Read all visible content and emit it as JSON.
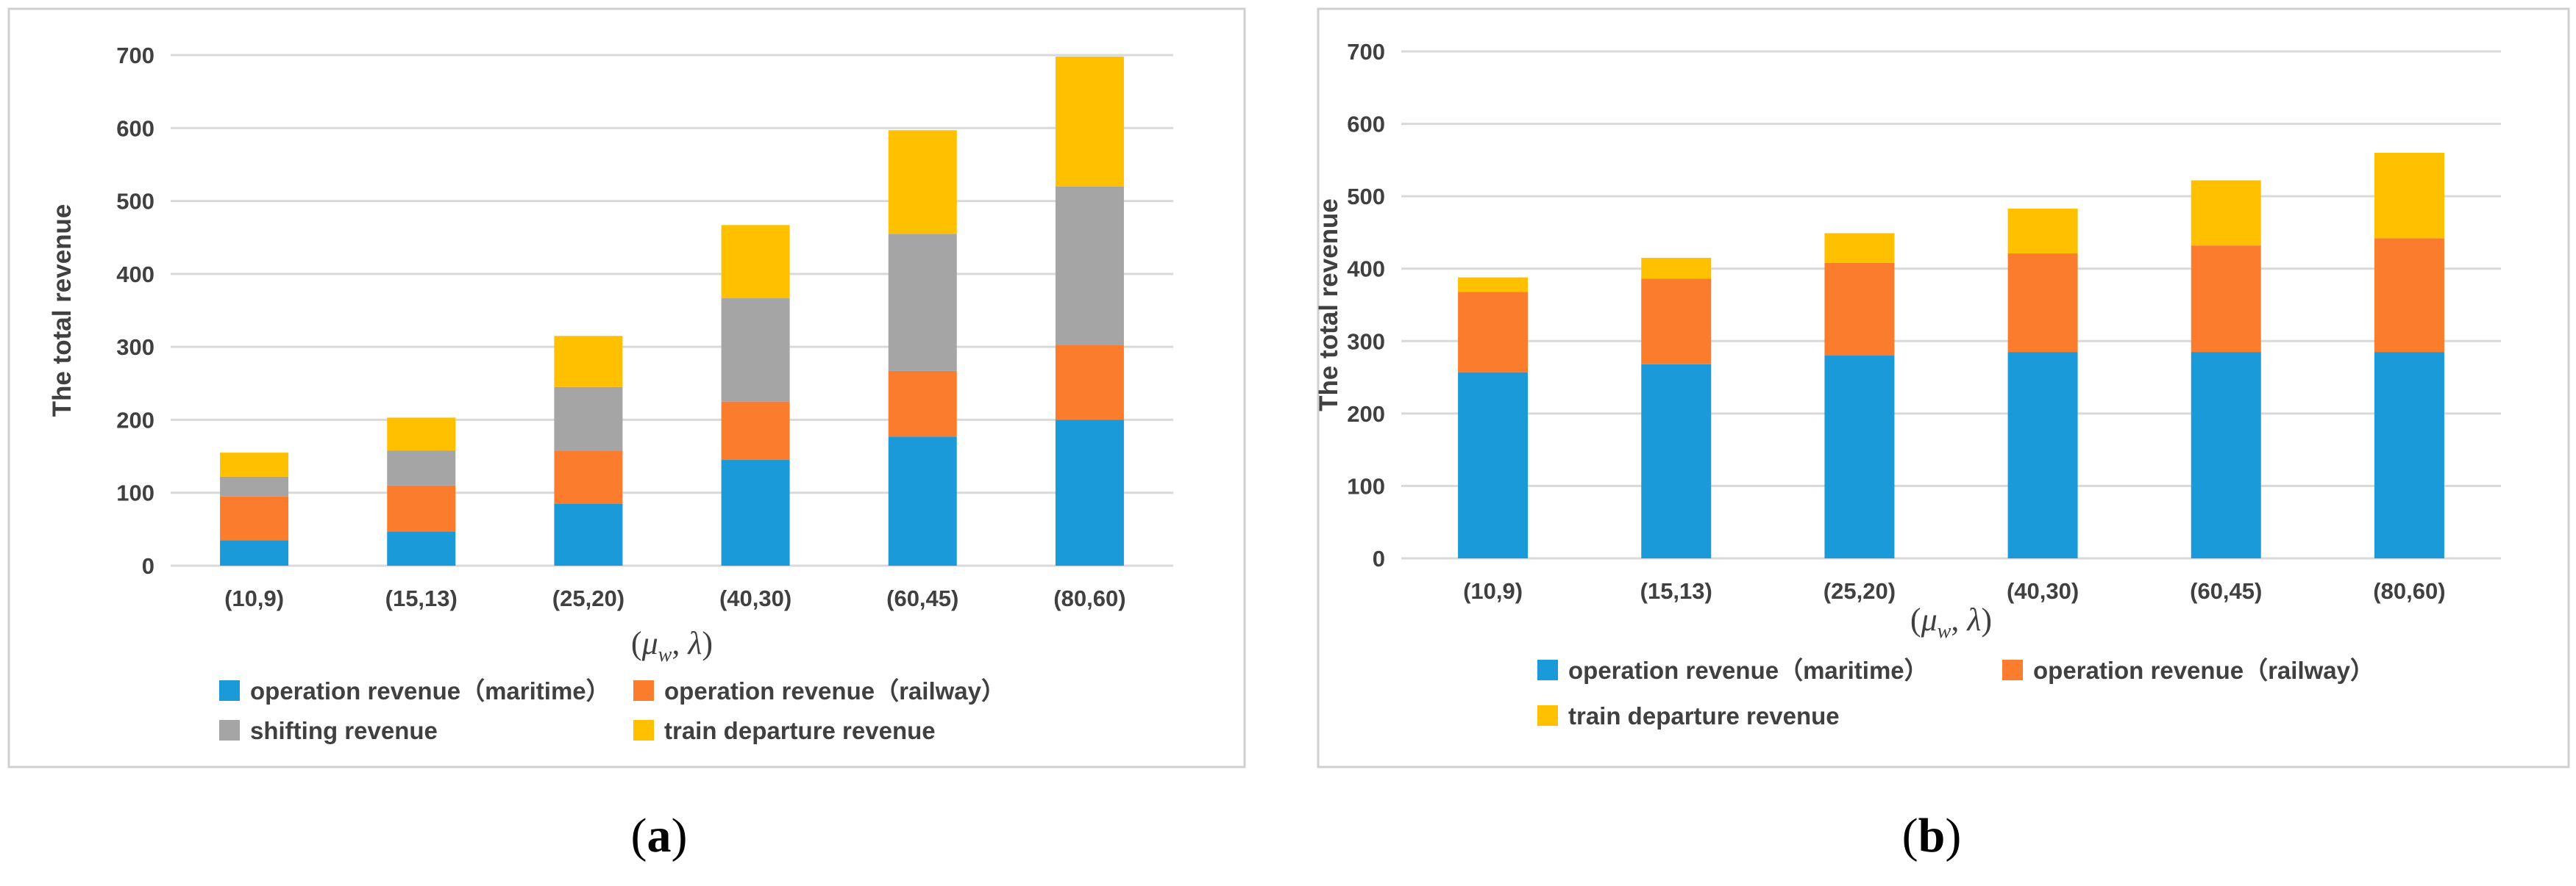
{
  "charts": [
    {
      "id": "a",
      "caption_open": "(",
      "caption_letter": "a",
      "caption_close": ")",
      "chart_data": {
        "type": "bar",
        "stacked": true,
        "title": "",
        "xlabel": "(μw, λ)",
        "xlabel_mu": "μ",
        "xlabel_sub": "w",
        "xlabel_sep": ", ",
        "xlabel_lambda": "λ",
        "xlabel_open": "(",
        "xlabel_close": ")",
        "ylabel": "The total revenue",
        "ylim": [
          0,
          700
        ],
        "yticks": [
          0,
          100,
          200,
          300,
          400,
          500,
          600,
          700
        ],
        "grid": true,
        "legend_position": "bottom",
        "categories": [
          "(10,9)",
          "(15,13)",
          "(25,20)",
          "(40,30)",
          "(60,45)",
          "(80,60)"
        ],
        "series": [
          {
            "name": "operation revenue（maritime）",
            "color": "#1a9ad8",
            "values": [
              35,
              47,
              85,
              145,
              177,
              200
            ]
          },
          {
            "name": "operation revenue（railway）",
            "color": "#fb7c2c",
            "values": [
              60,
              63,
              73,
              80,
              90,
              103
            ]
          },
          {
            "name": "shifting revenue",
            "color": "#a5a5a5",
            "values": [
              27,
              48,
              87,
              142,
              188,
              217
            ]
          },
          {
            "name": "train departure revenue",
            "color": "#ffc000",
            "values": [
              33,
              45,
              70,
              100,
              142,
              178
            ]
          }
        ]
      }
    },
    {
      "id": "b",
      "caption_open": "(",
      "caption_letter": "b",
      "caption_close": ")",
      "chart_data": {
        "type": "bar",
        "stacked": true,
        "title": "",
        "xlabel": "(μw, λ)",
        "xlabel_mu": "μ",
        "xlabel_sub": "w",
        "xlabel_sep": ", ",
        "xlabel_lambda": "λ",
        "xlabel_open": "(",
        "xlabel_close": ")",
        "ylabel": "The total revenue",
        "ylim": [
          0,
          700
        ],
        "yticks": [
          0,
          100,
          200,
          300,
          400,
          500,
          600,
          700
        ],
        "grid": true,
        "legend_position": "bottom",
        "categories": [
          "(10,9)",
          "(15,13)",
          "(25,20)",
          "(40,30)",
          "(60,45)",
          "(80,60)"
        ],
        "series": [
          {
            "name": "operation revenue（maritime）",
            "color": "#1a9ad8",
            "values": [
              257,
              268,
              280,
              285,
              285,
              285
            ]
          },
          {
            "name": "operation revenue（railway）",
            "color": "#fb7c2c",
            "values": [
              111,
              118,
              128,
              136,
              147,
              157
            ]
          },
          {
            "name": "train departure revenue",
            "color": "#ffc000",
            "values": [
              20,
              29,
              41,
              62,
              90,
              118
            ]
          }
        ]
      }
    }
  ]
}
